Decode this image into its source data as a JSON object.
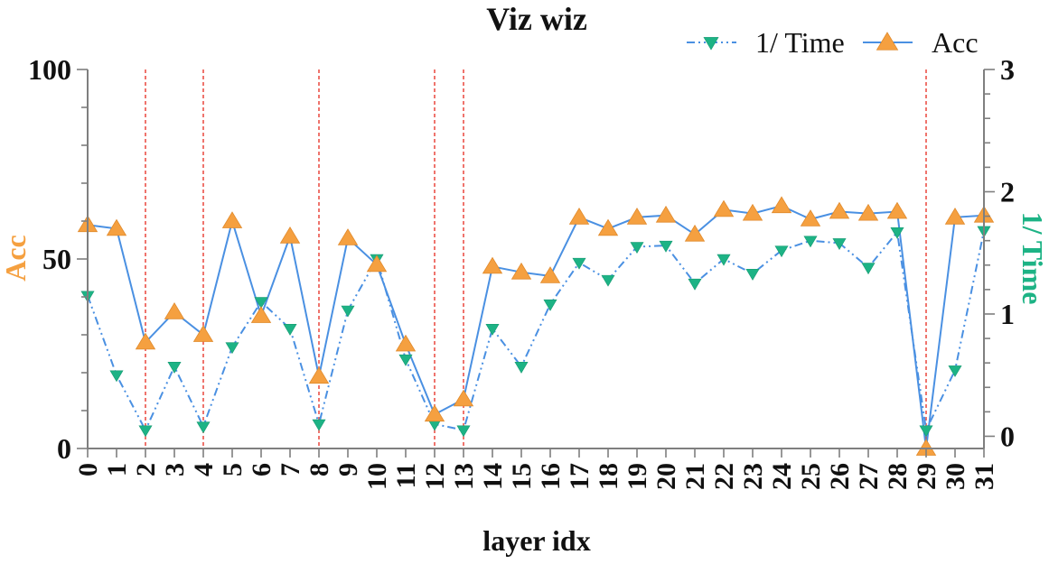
{
  "chart_data": {
    "type": "line",
    "title": "Viz wiz",
    "xlabel": "layer idx",
    "ylabel_left": "Acc",
    "ylabel_right": "1/ Time",
    "x": [
      0,
      1,
      2,
      3,
      4,
      5,
      6,
      7,
      8,
      9,
      10,
      11,
      12,
      13,
      14,
      15,
      16,
      17,
      18,
      19,
      20,
      21,
      22,
      23,
      24,
      25,
      26,
      27,
      28,
      29,
      30,
      31
    ],
    "x_tick_labels": [
      "0",
      "1",
      "2",
      "3",
      "4",
      "5",
      "6",
      "7",
      "8",
      "9",
      "10",
      "11",
      "12",
      "13",
      "14",
      "15",
      "16",
      "17",
      "18",
      "19",
      "20",
      "21",
      "22",
      "23",
      "24",
      "25",
      "26",
      "27",
      "28",
      "29",
      "30",
      "31"
    ],
    "y_left_range": [
      0,
      100
    ],
    "y_left_ticks": [
      "0",
      "50",
      "100"
    ],
    "y_right_range": [
      -0.1,
      3
    ],
    "y_right_ticks": [
      "0",
      "1",
      "2",
      "3"
    ],
    "highlight_layers": [
      2,
      4,
      8,
      12,
      13,
      29
    ],
    "legend_position": "top-right",
    "grid": false,
    "series": [
      {
        "name": "1/ Time",
        "axis": "right",
        "color": "#1db385",
        "line_color": "#4a90e2",
        "line_style": "dash-dot-dot",
        "marker": "triangle-down",
        "values": [
          1.15,
          0.5,
          0.05,
          0.57,
          0.08,
          0.73,
          1.1,
          0.88,
          0.1,
          1.03,
          1.45,
          0.63,
          0.1,
          0.05,
          0.88,
          0.57,
          1.08,
          1.42,
          1.28,
          1.55,
          1.56,
          1.25,
          1.45,
          1.33,
          1.52,
          1.6,
          1.58,
          1.38,
          1.67,
          0.05,
          0.54,
          1.68
        ]
      },
      {
        "name": "Acc",
        "axis": "left",
        "color": "#f5a040",
        "line_color": "#4a90e2",
        "line_style": "solid",
        "marker": "triangle-up",
        "values": [
          59,
          58,
          28,
          36,
          30,
          60,
          35,
          56,
          19,
          55.5,
          48.5,
          27.5,
          9,
          13,
          48,
          46.5,
          45.5,
          61,
          58,
          61,
          61.5,
          56.5,
          63,
          62,
          64,
          60.5,
          62.5,
          62,
          62.5,
          0,
          61,
          61.5
        ]
      }
    ]
  },
  "colors": {
    "axis": "#7f7f7f",
    "text": "#111111",
    "highlight": "#e8392f",
    "acc_label": "#f5a040",
    "time_label": "#1db385"
  }
}
